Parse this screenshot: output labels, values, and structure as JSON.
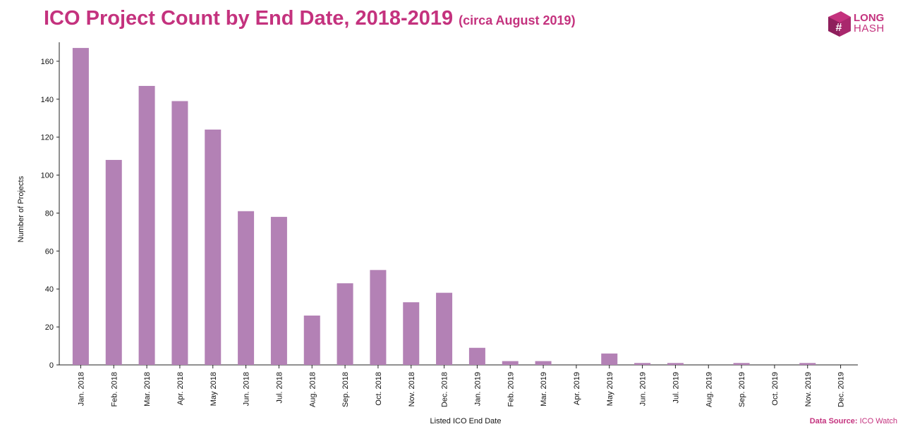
{
  "header": {
    "title": "ICO Project Count by End Date, 2018-2019",
    "subtitle": "(circa August 2019)"
  },
  "logo": {
    "line1": "LONG",
    "line2": "HASH"
  },
  "footer": {
    "source_label": "Data Source:",
    "source_value": "ICO Watch"
  },
  "colors": {
    "bar": "#b381b5",
    "title": "#c4327e",
    "axis": "#222222"
  },
  "chart_data": {
    "type": "bar",
    "title": "ICO Project Count by End Date, 2018-2019",
    "subtitle": "(circa August 2019)",
    "xlabel": "Listed ICO End Date",
    "ylabel": "Number of Projects",
    "ylim": [
      0,
      170
    ],
    "yticks": [
      0,
      20,
      40,
      60,
      80,
      100,
      120,
      140,
      160
    ],
    "grid": false,
    "categories": [
      "Jan. 2018",
      "Feb. 2018",
      "Mar. 2018",
      "Apr. 2018",
      "May 2018",
      "Jun. 2018",
      "Jul. 2018",
      "Aug. 2018",
      "Sep. 2018",
      "Oct. 2018",
      "Nov. 2018",
      "Dec. 2018",
      "Jan. 2019",
      "Feb. 2019",
      "Mar. 2019",
      "Apr. 2019",
      "May 2019",
      "Jun. 2019",
      "Jul. 2019",
      "Aug. 2019",
      "Sep. 2019",
      "Oct. 2019",
      "Nov. 2019",
      "Dec. 2019"
    ],
    "values": [
      167,
      108,
      147,
      139,
      124,
      81,
      78,
      26,
      43,
      50,
      33,
      38,
      9,
      2,
      2,
      0,
      6,
      1,
      1,
      0,
      1,
      0,
      1,
      0
    ]
  }
}
